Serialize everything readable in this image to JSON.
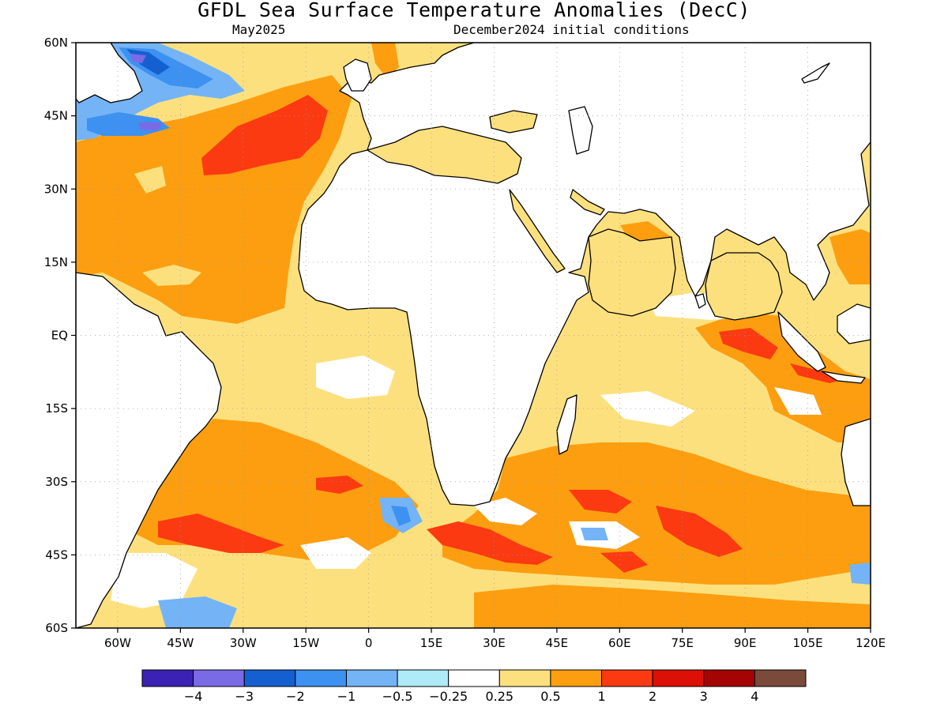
{
  "header": {
    "title": "GFDL Sea Surface Temperature Anomalies (DecC)",
    "subtitle_left": "May2025",
    "subtitle_right": "December2024 initial conditions"
  },
  "map": {
    "projection": "cylindrical-equidistant",
    "lon_range": [
      -70,
      120
    ],
    "lat_range": [
      -60,
      60
    ],
    "lon_ticks": [
      {
        "value": -60,
        "label": "60W"
      },
      {
        "value": -45,
        "label": "45W"
      },
      {
        "value": -30,
        "label": "30W"
      },
      {
        "value": -15,
        "label": "15W"
      },
      {
        "value": 0,
        "label": "0"
      },
      {
        "value": 15,
        "label": "15E"
      },
      {
        "value": 30,
        "label": "30E"
      },
      {
        "value": 45,
        "label": "45E"
      },
      {
        "value": 60,
        "label": "60E"
      },
      {
        "value": 75,
        "label": "75E"
      },
      {
        "value": 90,
        "label": "90E"
      },
      {
        "value": 105,
        "label": "105E"
      },
      {
        "value": 120,
        "label": "120E"
      }
    ],
    "lat_ticks": [
      {
        "value": 60,
        "label": "60N"
      },
      {
        "value": 45,
        "label": "45N"
      },
      {
        "value": 30,
        "label": "30N"
      },
      {
        "value": 15,
        "label": "15N"
      },
      {
        "value": 0,
        "label": "EQ"
      },
      {
        "value": -15,
        "label": "15S"
      },
      {
        "value": -30,
        "label": "30S"
      },
      {
        "value": -45,
        "label": "45S"
      },
      {
        "value": -60,
        "label": "60S"
      }
    ],
    "grid": "dotted"
  },
  "colorbar": {
    "colors": [
      "#3b22b4",
      "#7b6ae6",
      "#1560d0",
      "#3d91f0",
      "#74b4f6",
      "#aeeaf8",
      "#ffffff",
      "#fde07e",
      "#fd9e10",
      "#fb3a12",
      "#dd1008",
      "#a50404",
      "#7a4a3a"
    ],
    "labels": [
      "-4",
      "-3",
      "-2",
      "-1",
      "-0.5",
      "-0.25",
      "0.25",
      "0.5",
      "1",
      "2",
      "3",
      "4"
    ]
  }
}
